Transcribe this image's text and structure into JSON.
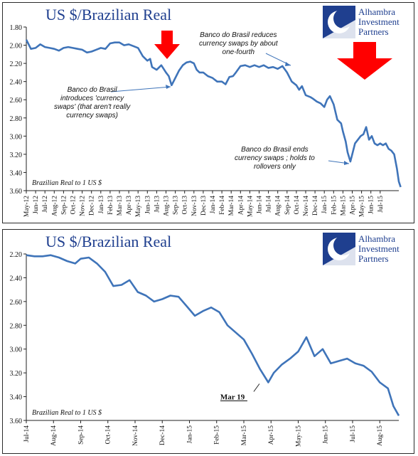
{
  "logo": {
    "line1": "Alhambra",
    "line2": "Investment",
    "line3": "Partners",
    "colors": {
      "box": "#1f3f8f",
      "text": "#1f3f8f"
    },
    "icon": "crescent-logo-icon"
  },
  "colors": {
    "line": "#3f74b9",
    "arrow": "#ff0000",
    "title": "#1f3f8f",
    "annotation_arrow": "#3f74b9"
  },
  "chart_data": [
    {
      "type": "line",
      "title": "US $/Brazilian Real",
      "series_label": "Brazilian Real to 1 US $",
      "ylim": [
        1.8,
        3.6
      ],
      "y_inverted": true,
      "yticks": [
        1.8,
        2.0,
        2.2,
        2.4,
        2.6,
        2.8,
        3.0,
        3.2,
        3.4,
        3.6
      ],
      "ytick_labels": [
        "1.80",
        "2.00",
        "2.20",
        "2.40",
        "2.60",
        "2.80",
        "3.00",
        "3.20",
        "3.40",
        "3.60"
      ],
      "grid": false,
      "x_tick_labels": [
        "May-12",
        "Jun-12",
        "Jul-12",
        "Aug-12",
        "Sep-12",
        "Oct-12",
        "Nov-12",
        "Dec-12",
        "Jan-13",
        "Feb-13",
        "Mar-13",
        "Apr-13",
        "May-13",
        "Jun-13",
        "Jul-13",
        "Aug-13",
        "Sep-13",
        "Oct-13",
        "Nov-13",
        "Dec-13",
        "Jan-14",
        "Feb-14",
        "Mar-14",
        "Apr-14",
        "May-14",
        "Jun-14",
        "Jul-14",
        "Aug-14",
        "Sep-14",
        "Oct-14",
        "Nov-14",
        "Dec-14",
        "Jan-15",
        "Feb-15",
        "Mar-15",
        "Apr-15",
        "May-15",
        "Jun-15",
        "Jul-15"
      ],
      "x_range_months": [
        0,
        40
      ],
      "series": [
        {
          "points": [
            [
              0,
              1.94
            ],
            [
              0.5,
              2.04
            ],
            [
              1,
              2.03
            ],
            [
              1.5,
              1.99
            ],
            [
              2,
              2.02
            ],
            [
              2.5,
              2.03
            ],
            [
              3,
              2.04
            ],
            [
              3.5,
              2.06
            ],
            [
              4,
              2.03
            ],
            [
              4.5,
              2.02
            ],
            [
              5,
              2.03
            ],
            [
              5.5,
              2.04
            ],
            [
              6,
              2.05
            ],
            [
              6.5,
              2.08
            ],
            [
              7,
              2.07
            ],
            [
              7.5,
              2.05
            ],
            [
              8,
              2.03
            ],
            [
              8.5,
              2.04
            ],
            [
              9,
              1.98
            ],
            [
              9.5,
              1.97
            ],
            [
              10,
              1.97
            ],
            [
              10.5,
              2.0
            ],
            [
              11,
              1.99
            ],
            [
              11.5,
              2.01
            ],
            [
              12,
              2.03
            ],
            [
              12.5,
              2.12
            ],
            [
              13,
              2.17
            ],
            [
              13.3,
              2.15
            ],
            [
              13.5,
              2.24
            ],
            [
              14,
              2.27
            ],
            [
              14.5,
              2.22
            ],
            [
              15,
              2.3
            ],
            [
              15.3,
              2.34
            ],
            [
              15.6,
              2.44
            ],
            [
              16,
              2.36
            ],
            [
              16.4,
              2.28
            ],
            [
              16.8,
              2.22
            ],
            [
              17.2,
              2.19
            ],
            [
              17.6,
              2.18
            ],
            [
              18,
              2.2
            ],
            [
              18.3,
              2.27
            ],
            [
              18.6,
              2.3
            ],
            [
              19,
              2.3
            ],
            [
              19.5,
              2.34
            ],
            [
              20,
              2.36
            ],
            [
              20.5,
              2.4
            ],
            [
              21,
              2.4
            ],
            [
              21.4,
              2.43
            ],
            [
              21.8,
              2.35
            ],
            [
              22.2,
              2.34
            ],
            [
              22.5,
              2.3
            ],
            [
              23,
              2.23
            ],
            [
              23.5,
              2.22
            ],
            [
              24,
              2.24
            ],
            [
              24.5,
              2.22
            ],
            [
              25,
              2.24
            ],
            [
              25.5,
              2.22
            ],
            [
              26,
              2.25
            ],
            [
              26.5,
              2.24
            ],
            [
              27,
              2.26
            ],
            [
              27.5,
              2.23
            ],
            [
              28,
              2.3
            ],
            [
              28.5,
              2.4
            ],
            [
              29,
              2.44
            ],
            [
              29.3,
              2.49
            ],
            [
              29.6,
              2.45
            ],
            [
              30,
              2.55
            ],
            [
              30.5,
              2.57
            ],
            [
              30.8,
              2.59
            ],
            [
              31.2,
              2.62
            ],
            [
              31.6,
              2.64
            ],
            [
              32,
              2.68
            ],
            [
              32.3,
              2.6
            ],
            [
              32.6,
              2.56
            ],
            [
              33,
              2.65
            ],
            [
              33.4,
              2.82
            ],
            [
              33.8,
              2.86
            ],
            [
              34,
              2.95
            ],
            [
              34.3,
              3.06
            ],
            [
              34.5,
              3.18
            ],
            [
              34.8,
              3.28
            ],
            [
              35,
              3.2
            ],
            [
              35.3,
              3.08
            ],
            [
              35.6,
              3.04
            ],
            [
              35.9,
              3.0
            ],
            [
              36.2,
              2.98
            ],
            [
              36.5,
              2.9
            ],
            [
              36.8,
              3.04
            ],
            [
              37.1,
              3.0
            ],
            [
              37.4,
              3.08
            ],
            [
              37.7,
              3.1
            ],
            [
              38,
              3.08
            ],
            [
              38.3,
              3.1
            ],
            [
              38.6,
              3.08
            ],
            [
              38.9,
              3.14
            ],
            [
              39.2,
              3.16
            ],
            [
              39.5,
              3.2
            ],
            [
              39.8,
              3.36
            ],
            [
              40,
              3.5
            ],
            [
              40.2,
              3.56
            ]
          ]
        }
      ],
      "annotations": [
        {
          "lines": [
            "Banco do Brasil",
            "introduces 'currency",
            "swaps' (that aren't really",
            "currency swaps)"
          ]
        },
        {
          "lines": [
            "Banco do Brasil reduces",
            "currency swaps by about",
            "one-fourth"
          ]
        },
        {
          "lines": [
            "Banco do Brasil ends",
            "currency swaps ; holds to",
            "rollovers only"
          ]
        }
      ]
    },
    {
      "type": "line",
      "title": "US $/Brazilian Real",
      "series_label": "Brazilian Real to 1 US $",
      "ylim": [
        2.2,
        3.6
      ],
      "y_inverted": true,
      "yticks": [
        2.2,
        2.4,
        2.6,
        2.8,
        3.0,
        3.2,
        3.4,
        3.6
      ],
      "ytick_labels": [
        "2.20",
        "2.40",
        "2.60",
        "2.80",
        "3.00",
        "3.20",
        "3.40",
        "3.60"
      ],
      "grid": false,
      "x_tick_labels": [
        "Jul-14",
        "Aug-14",
        "Sep-14",
        "Oct-14",
        "Nov-14",
        "Dec-14",
        "Jan-15",
        "Feb-15",
        "Mar-15",
        "Apr-15",
        "May-15",
        "Jun-15",
        "Jul-15",
        "Aug-15"
      ],
      "x_range_months": [
        0,
        13.7
      ],
      "series": [
        {
          "points": [
            [
              0,
              2.21
            ],
            [
              0.3,
              2.22
            ],
            [
              0.6,
              2.22
            ],
            [
              0.9,
              2.21
            ],
            [
              1.2,
              2.23
            ],
            [
              1.5,
              2.26
            ],
            [
              1.8,
              2.28
            ],
            [
              2,
              2.24
            ],
            [
              2.3,
              2.23
            ],
            [
              2.6,
              2.28
            ],
            [
              2.9,
              2.35
            ],
            [
              3.2,
              2.47
            ],
            [
              3.5,
              2.46
            ],
            [
              3.8,
              2.42
            ],
            [
              4.1,
              2.52
            ],
            [
              4.4,
              2.55
            ],
            [
              4.7,
              2.6
            ],
            [
              5,
              2.58
            ],
            [
              5.3,
              2.55
            ],
            [
              5.6,
              2.56
            ],
            [
              5.9,
              2.64
            ],
            [
              6.2,
              2.72
            ],
            [
              6.5,
              2.68
            ],
            [
              6.8,
              2.65
            ],
            [
              7.1,
              2.69
            ],
            [
              7.4,
              2.8
            ],
            [
              7.7,
              2.86
            ],
            [
              8,
              2.92
            ],
            [
              8.3,
              3.04
            ],
            [
              8.6,
              3.17
            ],
            [
              8.9,
              3.28
            ],
            [
              9.1,
              3.2
            ],
            [
              9.4,
              3.13
            ],
            [
              9.7,
              3.08
            ],
            [
              10,
              3.02
            ],
            [
              10.3,
              2.9
            ],
            [
              10.6,
              3.06
            ],
            [
              10.9,
              3.0
            ],
            [
              11.2,
              3.12
            ],
            [
              11.5,
              3.1
            ],
            [
              11.8,
              3.08
            ],
            [
              12.1,
              3.12
            ],
            [
              12.4,
              3.14
            ],
            [
              12.7,
              3.19
            ],
            [
              13.0,
              3.28
            ],
            [
              13.3,
              3.33
            ],
            [
              13.5,
              3.48
            ],
            [
              13.7,
              3.56
            ]
          ]
        }
      ],
      "annotations": [
        {
          "label": "Mar 19",
          "x": 8.6,
          "y": 3.28
        }
      ]
    }
  ]
}
